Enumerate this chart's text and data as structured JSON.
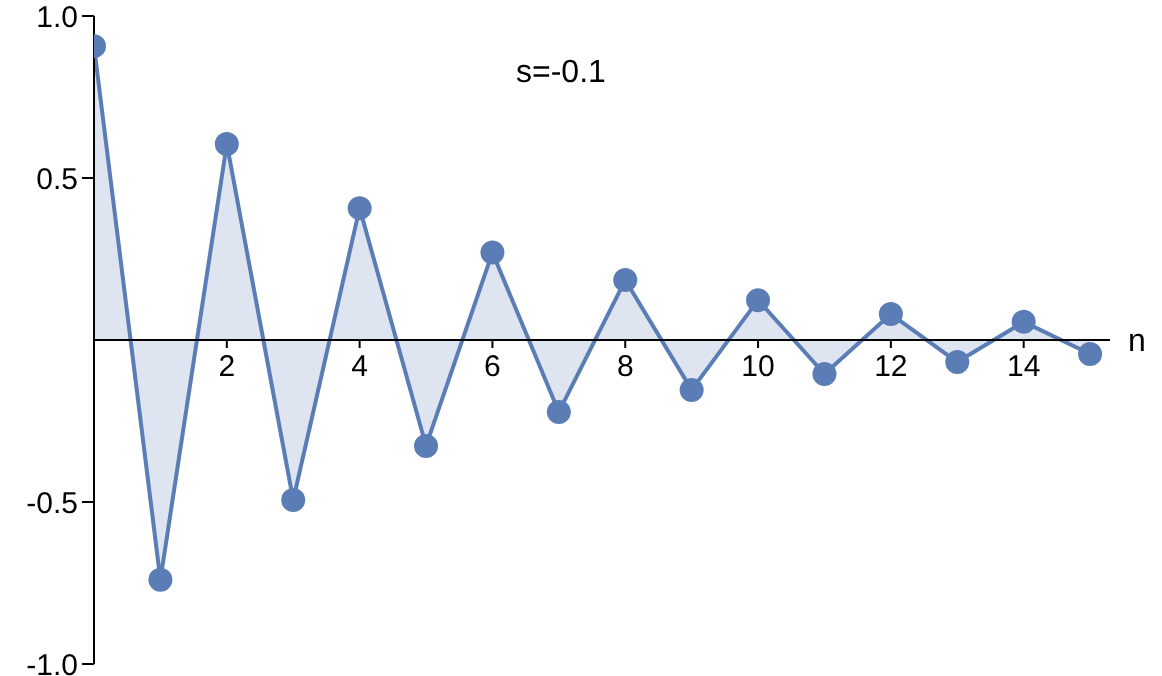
{
  "chart_data": {
    "type": "area",
    "xlabel": "n",
    "annotations": [
      "s=-0.1"
    ],
    "x": [
      0,
      1,
      2,
      3,
      4,
      5,
      6,
      7,
      8,
      9,
      10,
      11,
      12,
      13,
      14,
      15
    ],
    "series": [
      {
        "color": "#5b7db6",
        "values": [
          0.907,
          -0.74,
          0.605,
          -0.494,
          0.407,
          -0.327,
          0.27,
          -0.222,
          0.185,
          -0.154,
          0.123,
          -0.105,
          0.08,
          -0.068,
          0.056,
          -0.043
        ]
      }
    ],
    "xlim": [
      0,
      15.3
    ],
    "xticks": [
      2,
      4,
      6,
      8,
      10,
      12,
      14
    ],
    "ylim": [
      -1.0,
      1.0
    ],
    "yticks": [
      {
        "value": -1.0,
        "label": "-1.0"
      },
      {
        "value": -0.5,
        "label": "-0.5"
      },
      {
        "value": 0.5,
        "label": "0.5"
      },
      {
        "value": 1.0,
        "label": "1.0"
      }
    ],
    "marker": "circle",
    "line_style": "solid",
    "grid": false,
    "legend": false
  }
}
